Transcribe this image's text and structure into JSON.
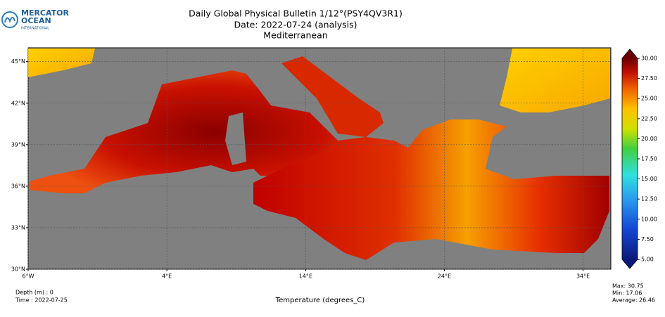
{
  "header": {
    "logo": [
      "MERCATOR",
      "OCEAN",
      "INTERNATIONAL"
    ],
    "title": [
      "Daily Global Physical Bulletin 1/12°(PSY4QV3R1)",
      "Date: 2022-07-24 (analysis)",
      "Mediterranean"
    ]
  },
  "map": {
    "xlim": [
      -6,
      36
    ],
    "ylim": [
      30,
      46
    ],
    "xticks": [
      {
        "value": -6,
        "label": "6°W"
      },
      {
        "value": 4,
        "label": "4°E"
      },
      {
        "value": 14,
        "label": "14°E"
      },
      {
        "value": 24,
        "label": "24°E"
      },
      {
        "value": 34,
        "label": "34°E"
      }
    ],
    "yticks": [
      {
        "value": 30,
        "label": "30°N"
      },
      {
        "value": 33,
        "label": "33°N"
      },
      {
        "value": 36,
        "label": "36°N"
      },
      {
        "value": 39,
        "label": "39°N"
      },
      {
        "value": 42,
        "label": "42°N"
      },
      {
        "value": 45,
        "label": "45°N"
      }
    ]
  },
  "colorbar": {
    "lim": [
      5,
      30
    ],
    "ticks": [
      {
        "value": 5,
        "label": "5.00"
      },
      {
        "value": 7.5,
        "label": "7.50"
      },
      {
        "value": 10,
        "label": "10.00"
      },
      {
        "value": 12.5,
        "label": "12.50"
      },
      {
        "value": 15,
        "label": "15.00"
      },
      {
        "value": 17.5,
        "label": "17.50"
      },
      {
        "value": 20,
        "label": "20.00"
      },
      {
        "value": 22.5,
        "label": "22.50"
      },
      {
        "value": 25,
        "label": "25.00"
      },
      {
        "value": 27.5,
        "label": "27.50"
      },
      {
        "value": 30,
        "label": "30.00"
      }
    ]
  },
  "footer": {
    "depth": "Depth (m) : 0",
    "time": "Time : 2022-07-25",
    "variable": "Temperature (degrees_C)",
    "max": "Max: 30.75",
    "min": "Min: 17.06",
    "average": "Average: 26.46"
  }
}
